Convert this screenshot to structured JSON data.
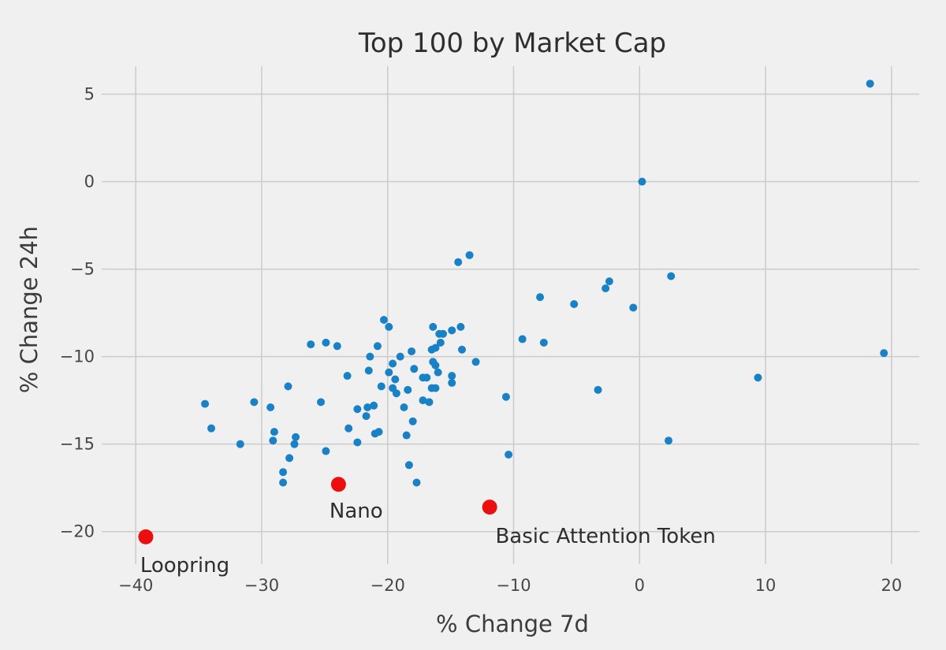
{
  "chart_data": {
    "type": "scatter",
    "title": "Top 100 by Market Cap",
    "xlabel": "% Change 7d",
    "ylabel": "% Change 24h",
    "xlim": [
      -42.2,
      22.2
    ],
    "ylim": [
      -21.5,
      6.6
    ],
    "grid": true,
    "legend": "none",
    "x_ticks": [
      {
        "value": -40,
        "label": "−40"
      },
      {
        "value": -30,
        "label": "−30"
      },
      {
        "value": -20,
        "label": "−20"
      },
      {
        "value": -10,
        "label": "−10"
      },
      {
        "value": 0,
        "label": "0"
      },
      {
        "value": 10,
        "label": "10"
      },
      {
        "value": 20,
        "label": "20"
      }
    ],
    "y_ticks": [
      {
        "value": 5,
        "label": "5"
      },
      {
        "value": 0,
        "label": "0"
      },
      {
        "value": -5,
        "label": "−5"
      },
      {
        "value": -10,
        "label": "−10"
      },
      {
        "value": -15,
        "label": "−15"
      },
      {
        "value": -20,
        "label": "−20"
      }
    ],
    "series": [
      {
        "name": "coins",
        "color": "#1981c5",
        "marker_radius": 5,
        "points": [
          [
            -34.5,
            -12.7
          ],
          [
            -34.0,
            -14.1
          ],
          [
            -31.7,
            -15.0
          ],
          [
            -30.6,
            -12.6
          ],
          [
            -29.3,
            -12.9
          ],
          [
            -29.0,
            -14.3
          ],
          [
            -29.1,
            -14.8
          ],
          [
            -28.3,
            -16.6
          ],
          [
            -28.3,
            -17.2
          ],
          [
            -27.8,
            -15.8
          ],
          [
            -27.9,
            -11.7
          ],
          [
            -27.3,
            -14.6
          ],
          [
            -27.4,
            -15.0
          ],
          [
            -26.1,
            -9.3
          ],
          [
            -24.9,
            -9.2
          ],
          [
            -24.0,
            -9.4
          ],
          [
            -24.9,
            -15.4
          ],
          [
            -25.3,
            -12.6
          ],
          [
            -23.2,
            -11.1
          ],
          [
            -23.1,
            -14.1
          ],
          [
            -22.4,
            -14.9
          ],
          [
            -22.4,
            -13.0
          ],
          [
            -21.6,
            -12.9
          ],
          [
            -21.1,
            -12.8
          ],
          [
            -21.7,
            -13.4
          ],
          [
            -21.0,
            -14.4
          ],
          [
            -20.7,
            -14.3
          ],
          [
            -20.3,
            -7.9
          ],
          [
            -19.9,
            -8.3
          ],
          [
            -21.4,
            -10.0
          ],
          [
            -21.5,
            -10.8
          ],
          [
            -20.8,
            -9.4
          ],
          [
            -19.6,
            -10.4
          ],
          [
            -19.9,
            -10.9
          ],
          [
            -19.4,
            -11.3
          ],
          [
            -19.6,
            -11.8
          ],
          [
            -19.3,
            -12.1
          ],
          [
            -19.0,
            -10.0
          ],
          [
            -20.5,
            -11.7
          ],
          [
            -18.4,
            -11.9
          ],
          [
            -18.7,
            -12.9
          ],
          [
            -18.1,
            -9.7
          ],
          [
            -18.0,
            -13.7
          ],
          [
            -18.5,
            -14.5
          ],
          [
            -18.3,
            -16.2
          ],
          [
            -17.7,
            -17.2
          ],
          [
            -17.9,
            -10.7
          ],
          [
            -17.2,
            -11.2
          ],
          [
            -16.9,
            -11.2
          ],
          [
            -17.2,
            -12.5
          ],
          [
            -16.7,
            -12.6
          ],
          [
            -16.5,
            -11.8
          ],
          [
            -16.2,
            -11.8
          ],
          [
            -16.4,
            -10.3
          ],
          [
            -16.2,
            -10.5
          ],
          [
            -16.0,
            -10.9
          ],
          [
            -16.4,
            -8.3
          ],
          [
            -15.9,
            -8.7
          ],
          [
            -15.6,
            -8.7
          ],
          [
            -14.9,
            -8.5
          ],
          [
            -14.2,
            -8.3
          ],
          [
            -15.8,
            -9.2
          ],
          [
            -16.5,
            -9.6
          ],
          [
            -16.2,
            -9.5
          ],
          [
            -14.1,
            -9.6
          ],
          [
            -14.9,
            -11.1
          ],
          [
            -14.9,
            -11.5
          ],
          [
            -13.0,
            -10.3
          ],
          [
            -14.4,
            -4.6
          ],
          [
            -13.5,
            -4.2
          ],
          [
            -10.6,
            -12.3
          ],
          [
            -10.4,
            -15.6
          ],
          [
            -9.3,
            -9.0
          ],
          [
            -7.6,
            -9.2
          ],
          [
            -7.9,
            -6.6
          ],
          [
            -5.2,
            -7.0
          ],
          [
            -3.3,
            -11.9
          ],
          [
            -2.4,
            -5.7
          ],
          [
            -2.7,
            -6.1
          ],
          [
            -0.5,
            -7.2
          ],
          [
            0.2,
            0.0
          ],
          [
            2.5,
            -5.4
          ],
          [
            2.3,
            -14.8
          ],
          [
            9.4,
            -11.2
          ],
          [
            19.4,
            -9.8
          ],
          [
            18.3,
            5.6
          ]
        ]
      },
      {
        "name": "highlighted",
        "color": "#eb0f0f",
        "marker_radius": 9.5,
        "points": [
          {
            "name": "Loopring",
            "x": -39.2,
            "y": -20.3
          },
          {
            "name": "Nano",
            "x": -23.9,
            "y": -17.3
          },
          {
            "name": "Basic Attention Token",
            "x": -11.9,
            "y": -18.6
          }
        ]
      }
    ],
    "annotations": [
      {
        "text": "Loopring",
        "x": -36.1,
        "y": -21.9
      },
      {
        "text": "Nano",
        "x": -22.5,
        "y": -18.8
      },
      {
        "text": "Basic Attention Token",
        "x": -2.7,
        "y": -20.25
      }
    ]
  },
  "colors": {
    "background": "#f0f0f0",
    "gridline": "#cbcbcb",
    "dot_blue": "#1981c5",
    "dot_red": "#eb0f0f",
    "title_text": "#2e2e2e",
    "tick_text": "#474747"
  }
}
